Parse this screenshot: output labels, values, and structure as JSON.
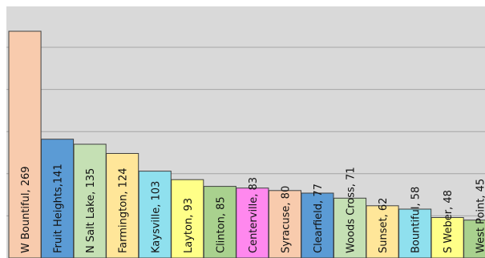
{
  "chart_data": {
    "type": "bar",
    "title": "",
    "xlabel": "",
    "ylabel": "",
    "ylim": [
      0,
      300
    ],
    "grid": true,
    "legend": "none",
    "categories": [
      "W Bountiful",
      "Fruit Heights",
      "N Salt Lake",
      "Farmington",
      "Kaysville",
      "Layton",
      "Clinton",
      "Centerville",
      "Syracuse",
      "Clearfield",
      "Woods Cross",
      "Sunset",
      "Bountiful",
      "S Weber",
      "West Point"
    ],
    "values": [
      269,
      141,
      135,
      124,
      103,
      93,
      85,
      83,
      80,
      77,
      71,
      62,
      58,
      48,
      45
    ],
    "data_labels": [
      "W Bountiful, 269",
      "Fruit Heights,141",
      "N Salt Lake, 135",
      "Farmington, 124",
      "Kaysville, 103",
      "Layton, 93",
      "Clinton, 85",
      "Centerville, 83",
      "Syracuse, 80",
      "Clearfield, 77",
      "Woods Cross, 71",
      "Sunset, 62",
      "Bountiful, 58",
      "S Weber, 48",
      "West Point, 45"
    ],
    "colors": [
      "#f8cbad",
      "#5b9bd5",
      "#c5e0b4",
      "#ffe699",
      "#8fe0ee",
      "#ffff88",
      "#a9d18e",
      "#ff88ee",
      "#f8cbad",
      "#5b9bd5",
      "#c5e0b4",
      "#ffe699",
      "#8fe0ee",
      "#ffff88",
      "#a9d18e"
    ],
    "plot_background": "#d9d9d9",
    "gridline_color": "#a6a6a6"
  }
}
